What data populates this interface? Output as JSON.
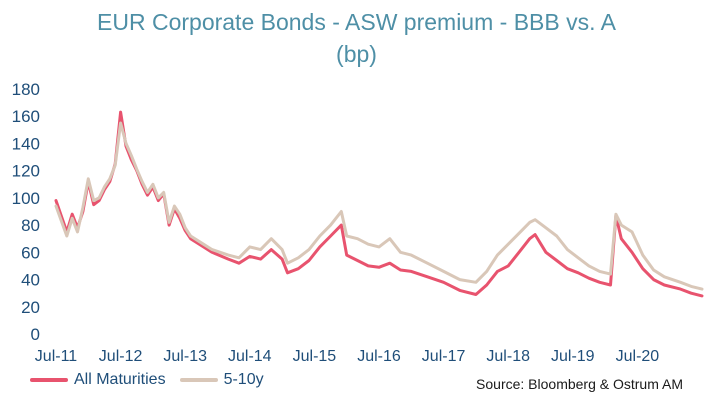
{
  "chart_data": {
    "type": "line",
    "title": [
      "EUR Corporate Bonds - ASW premium - BBB vs. A",
      "(bp)"
    ],
    "xlabel": "",
    "ylabel": "",
    "ylim": [
      0,
      180
    ],
    "y_ticks": [
      "0",
      "20",
      "40",
      "60",
      "80",
      "100",
      "120",
      "140",
      "160",
      "180"
    ],
    "x_ticks": [
      "Jul-11",
      "Jul-12",
      "Jul-13",
      "Jul-14",
      "Jul-15",
      "Jul-16",
      "Jul-17",
      "Jul-18",
      "Jul-19",
      "Jul-20"
    ],
    "x_tick_dates": [
      "2011-07",
      "2012-07",
      "2013-07",
      "2014-07",
      "2015-07",
      "2016-07",
      "2017-07",
      "2018-07",
      "2019-07",
      "2020-07"
    ],
    "x_range": [
      "2011-07",
      "2021-07"
    ],
    "grid": false,
    "legend_position": "bottom-left",
    "series": [
      {
        "name": "All Maturities",
        "color": "#e8536e",
        "points": [
          [
            "2011-07",
            98
          ],
          [
            "2011-09",
            75
          ],
          [
            "2011-10",
            88
          ],
          [
            "2011-11",
            78
          ],
          [
            "2011-12",
            90
          ],
          [
            "2012-01",
            112
          ],
          [
            "2012-02",
            95
          ],
          [
            "2012-03",
            98
          ],
          [
            "2012-04",
            106
          ],
          [
            "2012-05",
            112
          ],
          [
            "2012-06",
            125
          ],
          [
            "2012-07",
            163
          ],
          [
            "2012-08",
            138
          ],
          [
            "2012-09",
            128
          ],
          [
            "2012-10",
            120
          ],
          [
            "2012-11",
            110
          ],
          [
            "2012-12",
            102
          ],
          [
            "2013-01",
            108
          ],
          [
            "2013-02",
            98
          ],
          [
            "2013-03",
            103
          ],
          [
            "2013-04",
            80
          ],
          [
            "2013-05",
            92
          ],
          [
            "2013-06",
            85
          ],
          [
            "2013-07",
            76
          ],
          [
            "2013-08",
            70
          ],
          [
            "2013-10",
            65
          ],
          [
            "2013-12",
            60
          ],
          [
            "2014-03",
            55
          ],
          [
            "2014-05",
            52
          ],
          [
            "2014-07",
            57
          ],
          [
            "2014-09",
            55
          ],
          [
            "2014-11",
            62
          ],
          [
            "2015-01",
            55
          ],
          [
            "2015-02",
            45
          ],
          [
            "2015-04",
            48
          ],
          [
            "2015-06",
            54
          ],
          [
            "2015-08",
            64
          ],
          [
            "2015-10",
            72
          ],
          [
            "2015-12",
            80
          ],
          [
            "2016-01",
            58
          ],
          [
            "2016-03",
            54
          ],
          [
            "2016-05",
            50
          ],
          [
            "2016-07",
            49
          ],
          [
            "2016-09",
            52
          ],
          [
            "2016-11",
            47
          ],
          [
            "2017-01",
            46
          ],
          [
            "2017-04",
            42
          ],
          [
            "2017-07",
            38
          ],
          [
            "2017-10",
            32
          ],
          [
            "2018-01",
            29
          ],
          [
            "2018-03",
            36
          ],
          [
            "2018-05",
            46
          ],
          [
            "2018-07",
            50
          ],
          [
            "2018-09",
            60
          ],
          [
            "2018-11",
            70
          ],
          [
            "2018-12",
            73
          ],
          [
            "2019-02",
            60
          ],
          [
            "2019-04",
            54
          ],
          [
            "2019-06",
            48
          ],
          [
            "2019-08",
            45
          ],
          [
            "2019-10",
            41
          ],
          [
            "2019-12",
            38
          ],
          [
            "2020-02",
            36
          ],
          [
            "2020-03",
            87
          ],
          [
            "2020-04",
            70
          ],
          [
            "2020-06",
            60
          ],
          [
            "2020-08",
            48
          ],
          [
            "2020-10",
            40
          ],
          [
            "2020-12",
            36
          ],
          [
            "2021-03",
            33
          ],
          [
            "2021-05",
            30
          ],
          [
            "2021-07",
            28
          ]
        ]
      },
      {
        "name": "5-10y",
        "color": "#d9c7b8",
        "points": [
          [
            "2011-07",
            94
          ],
          [
            "2011-09",
            72
          ],
          [
            "2011-10",
            85
          ],
          [
            "2011-11",
            75
          ],
          [
            "2011-12",
            93
          ],
          [
            "2012-01",
            114
          ],
          [
            "2012-02",
            98
          ],
          [
            "2012-03",
            100
          ],
          [
            "2012-04",
            108
          ],
          [
            "2012-05",
            114
          ],
          [
            "2012-06",
            124
          ],
          [
            "2012-07",
            155
          ],
          [
            "2012-08",
            140
          ],
          [
            "2012-09",
            131
          ],
          [
            "2012-10",
            121
          ],
          [
            "2012-11",
            112
          ],
          [
            "2012-12",
            104
          ],
          [
            "2013-01",
            110
          ],
          [
            "2013-02",
            100
          ],
          [
            "2013-03",
            104
          ],
          [
            "2013-04",
            82
          ],
          [
            "2013-05",
            94
          ],
          [
            "2013-06",
            88
          ],
          [
            "2013-07",
            78
          ],
          [
            "2013-08",
            72
          ],
          [
            "2013-10",
            67
          ],
          [
            "2013-12",
            62
          ],
          [
            "2014-03",
            58
          ],
          [
            "2014-05",
            56
          ],
          [
            "2014-07",
            64
          ],
          [
            "2014-09",
            62
          ],
          [
            "2014-11",
            70
          ],
          [
            "2015-01",
            62
          ],
          [
            "2015-02",
            52
          ],
          [
            "2015-04",
            56
          ],
          [
            "2015-06",
            62
          ],
          [
            "2015-08",
            72
          ],
          [
            "2015-10",
            80
          ],
          [
            "2015-12",
            90
          ],
          [
            "2016-01",
            72
          ],
          [
            "2016-03",
            70
          ],
          [
            "2016-05",
            66
          ],
          [
            "2016-07",
            64
          ],
          [
            "2016-09",
            70
          ],
          [
            "2016-11",
            60
          ],
          [
            "2017-01",
            58
          ],
          [
            "2017-04",
            52
          ],
          [
            "2017-07",
            46
          ],
          [
            "2017-10",
            40
          ],
          [
            "2018-01",
            38
          ],
          [
            "2018-03",
            46
          ],
          [
            "2018-05",
            58
          ],
          [
            "2018-07",
            66
          ],
          [
            "2018-09",
            74
          ],
          [
            "2018-11",
            82
          ],
          [
            "2018-12",
            84
          ],
          [
            "2019-02",
            78
          ],
          [
            "2019-04",
            72
          ],
          [
            "2019-06",
            62
          ],
          [
            "2019-08",
            56
          ],
          [
            "2019-10",
            50
          ],
          [
            "2019-12",
            46
          ],
          [
            "2020-02",
            44
          ],
          [
            "2020-03",
            88
          ],
          [
            "2020-04",
            80
          ],
          [
            "2020-06",
            75
          ],
          [
            "2020-08",
            58
          ],
          [
            "2020-10",
            47
          ],
          [
            "2020-12",
            42
          ],
          [
            "2021-03",
            38
          ],
          [
            "2021-05",
            35
          ],
          [
            "2021-07",
            33
          ]
        ]
      }
    ],
    "source": "Source: Bloomberg & Ostrum AM"
  }
}
